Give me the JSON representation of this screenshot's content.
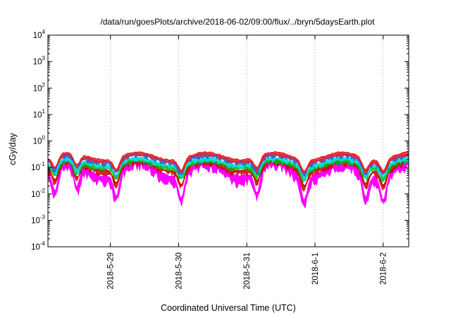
{
  "chart_data": {
    "type": "area",
    "title": "/data/run/goesPlots/archive/2018-06-02/09:00/flux/../bryn/5daysEarth.plot",
    "xlabel": "Coordinated Universal Time (UTC)",
    "ylabel": "cGy/day",
    "yscale": "log",
    "ylim": [
      0.0001,
      10000
    ],
    "y_ticks": [
      {
        "base": "10",
        "exp": "-4"
      },
      {
        "base": "10",
        "exp": "-3"
      },
      {
        "base": "10",
        "exp": "-2"
      },
      {
        "base": "10",
        "exp": "-1"
      },
      {
        "base": "10",
        "exp": "0"
      },
      {
        "base": "10",
        "exp": "1"
      },
      {
        "base": "10",
        "exp": "2"
      },
      {
        "base": "10",
        "exp": "3"
      },
      {
        "base": "10",
        "exp": "4"
      }
    ],
    "x_range": [
      "2018-05-28 02:00",
      "2018-06-02 09:00"
    ],
    "x_ticks": [
      "2018-5-29",
      "2018-5-30",
      "2018-5-31",
      "2018-6-1",
      "2018-6-2"
    ],
    "grid": "dotted",
    "legend": "none",
    "series": [
      {
        "color": "#ff00ff",
        "mean": 0.095
      },
      {
        "color": "#cc0000",
        "mean": 0.12
      },
      {
        "color": "#00bb00",
        "mean": 0.14
      },
      {
        "color": "#00dddd",
        "mean": 0.17
      },
      {
        "color": "#2a4cd4",
        "mean": 0.23
      },
      {
        "color": "#ee2222",
        "mean": 0.27
      }
    ]
  }
}
